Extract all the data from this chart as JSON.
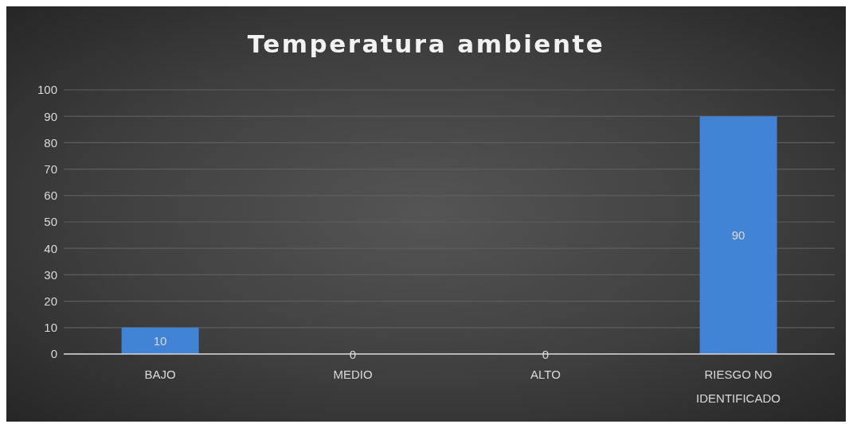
{
  "chart_data": {
    "type": "bar",
    "title": "Temperatura ambiente",
    "categories": [
      "BAJO",
      "MEDIO",
      "ALTO",
      "RIESGO NO IDENTIFICADO"
    ],
    "values": [
      10,
      0,
      0,
      90
    ],
    "color": "#4184d6",
    "ylim": [
      0,
      100
    ],
    "yticks": [
      0,
      10,
      20,
      30,
      40,
      50,
      60,
      70,
      80,
      90,
      100
    ],
    "grid": "y",
    "data_labels": true
  }
}
